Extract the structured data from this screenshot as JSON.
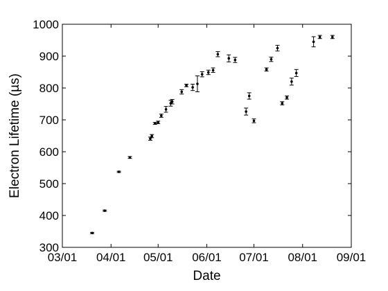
{
  "chart_data": {
    "type": "scatter",
    "xlabel": "Date",
    "ylabel": "Electron Lifetime (µs)",
    "x_ticks": [
      "03/01",
      "04/01",
      "05/01",
      "06/01",
      "07/01",
      "08/01",
      "09/01"
    ],
    "x_tick_dates": [
      "2011-03-01",
      "2011-04-01",
      "2011-05-01",
      "2011-06-01",
      "2011-07-01",
      "2011-08-01",
      "2011-09-01"
    ],
    "xlim": [
      "2011-03-01",
      "2011-09-01"
    ],
    "ylim": [
      300,
      1000
    ],
    "y_ticks": [
      300,
      400,
      500,
      600,
      700,
      800,
      900,
      1000
    ],
    "grid": false,
    "series": [
      {
        "marker": "dot",
        "error_bars": true,
        "points": [
          {
            "x": "2011-03-20",
            "y": 345,
            "err": 2
          },
          {
            "x": "2011-03-28",
            "y": 415,
            "err": 2
          },
          {
            "x": "2011-04-06",
            "y": 537,
            "err": 2
          },
          {
            "x": "2011-04-13",
            "y": 582,
            "err": 3
          },
          {
            "x": "2011-04-26",
            "y": 641,
            "err": 5
          },
          {
            "x": "2011-04-27",
            "y": 649,
            "err": 5
          },
          {
            "x": "2011-04-29",
            "y": 689,
            "err": 3
          },
          {
            "x": "2011-05-01",
            "y": 692,
            "err": 4
          },
          {
            "x": "2011-05-03",
            "y": 713,
            "err": 5
          },
          {
            "x": "2011-05-06",
            "y": 733,
            "err": 9
          },
          {
            "x": "2011-05-09",
            "y": 752,
            "err": 9
          },
          {
            "x": "2011-05-10",
            "y": 757,
            "err": 7
          },
          {
            "x": "2011-05-16",
            "y": 788,
            "err": 7
          },
          {
            "x": "2011-05-19",
            "y": 808,
            "err": 4
          },
          {
            "x": "2011-05-23",
            "y": 802,
            "err": 10
          },
          {
            "x": "2011-05-26",
            "y": 813,
            "err": 25
          },
          {
            "x": "2011-05-29",
            "y": 843,
            "err": 8
          },
          {
            "x": "2011-06-02",
            "y": 849,
            "err": 7
          },
          {
            "x": "2011-06-05",
            "y": 856,
            "err": 7
          },
          {
            "x": "2011-06-08",
            "y": 906,
            "err": 8
          },
          {
            "x": "2011-06-15",
            "y": 893,
            "err": 11
          },
          {
            "x": "2011-06-19",
            "y": 888,
            "err": 8
          },
          {
            "x": "2011-06-26",
            "y": 726,
            "err": 11
          },
          {
            "x": "2011-06-28",
            "y": 775,
            "err": 10
          },
          {
            "x": "2011-07-01",
            "y": 697,
            "err": 6
          },
          {
            "x": "2011-07-09",
            "y": 858,
            "err": 5
          },
          {
            "x": "2011-07-12",
            "y": 890,
            "err": 7
          },
          {
            "x": "2011-07-16",
            "y": 925,
            "err": 9
          },
          {
            "x": "2011-07-19",
            "y": 752,
            "err": 5
          },
          {
            "x": "2011-07-22",
            "y": 770,
            "err": 5
          },
          {
            "x": "2011-07-25",
            "y": 820,
            "err": 11
          },
          {
            "x": "2011-07-28",
            "y": 847,
            "err": 11
          },
          {
            "x": "2011-08-08",
            "y": 945,
            "err": 16
          },
          {
            "x": "2011-08-12",
            "y": 960,
            "err": 5
          },
          {
            "x": "2011-08-20",
            "y": 960,
            "err": 5
          }
        ]
      }
    ]
  }
}
